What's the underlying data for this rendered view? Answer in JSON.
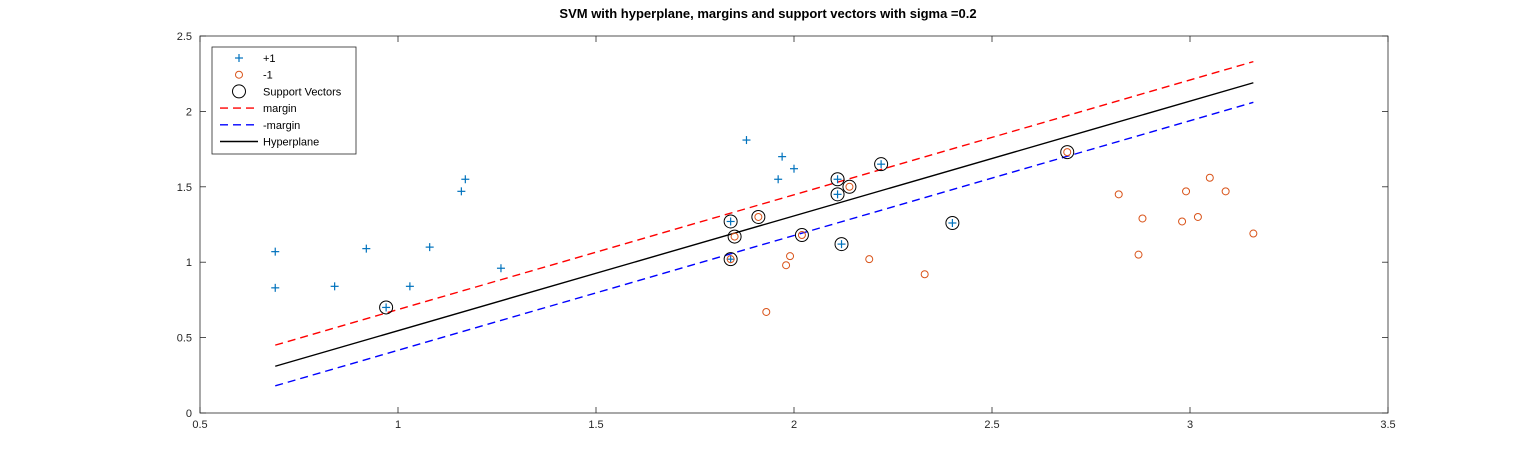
{
  "chart_data": {
    "type": "scatter",
    "title": "SVM with hyperplane, margins and support vectors with sigma =0.2",
    "xlabel": "",
    "ylabel": "",
    "xlim": [
      0.5,
      3.5
    ],
    "ylim": [
      0,
      2.5
    ],
    "xticks": [
      "0.5",
      "1",
      "1.5",
      "2",
      "2.5",
      "3",
      "3.5"
    ],
    "yticks": [
      "0",
      "0.5",
      "1",
      "1.5",
      "2",
      "2.5"
    ],
    "grid": false,
    "legend_position": "top-left",
    "colors": {
      "positive": "#0072BD",
      "negative": "#D95319",
      "support": "#000000",
      "margin": "#FF0000",
      "neg_margin": "#0000FF",
      "hyperplane": "#000000"
    },
    "series": [
      {
        "name": "+1",
        "marker": "plus",
        "points": [
          [
            0.69,
            1.07
          ],
          [
            0.69,
            0.83
          ],
          [
            0.84,
            0.84
          ],
          [
            0.92,
            1.09
          ],
          [
            0.97,
            0.7
          ],
          [
            1.03,
            0.84
          ],
          [
            1.08,
            1.1
          ],
          [
            1.16,
            1.47
          ],
          [
            1.17,
            1.55
          ],
          [
            1.26,
            0.96
          ],
          [
            1.84,
            1.27
          ],
          [
            1.84,
            1.02
          ],
          [
            1.88,
            1.81
          ],
          [
            1.96,
            1.55
          ],
          [
            1.97,
            1.7
          ],
          [
            2.0,
            1.62
          ],
          [
            2.11,
            1.55
          ],
          [
            2.11,
            1.45
          ],
          [
            2.12,
            1.12
          ],
          [
            2.22,
            1.65
          ],
          [
            2.4,
            1.26
          ]
        ]
      },
      {
        "name": "-1",
        "marker": "circle",
        "points": [
          [
            1.84,
            1.02
          ],
          [
            1.85,
            1.17
          ],
          [
            1.91,
            1.3
          ],
          [
            1.93,
            0.67
          ],
          [
            1.98,
            0.98
          ],
          [
            1.99,
            1.04
          ],
          [
            2.02,
            1.18
          ],
          [
            2.14,
            1.5
          ],
          [
            2.19,
            1.02
          ],
          [
            2.33,
            0.92
          ],
          [
            2.69,
            1.73
          ],
          [
            2.82,
            1.45
          ],
          [
            2.87,
            1.05
          ],
          [
            2.88,
            1.29
          ],
          [
            2.98,
            1.27
          ],
          [
            2.99,
            1.47
          ],
          [
            3.02,
            1.3
          ],
          [
            3.05,
            1.56
          ],
          [
            3.09,
            1.47
          ],
          [
            3.16,
            1.19
          ]
        ]
      },
      {
        "name": "Support Vectors",
        "marker": "large-circle",
        "points": [
          [
            0.97,
            0.7
          ],
          [
            1.84,
            1.27
          ],
          [
            1.84,
            1.02
          ],
          [
            1.85,
            1.17
          ],
          [
            1.91,
            1.3
          ],
          [
            2.02,
            1.18
          ],
          [
            2.11,
            1.55
          ],
          [
            2.11,
            1.45
          ],
          [
            2.12,
            1.12
          ],
          [
            2.14,
            1.5
          ],
          [
            2.22,
            1.65
          ],
          [
            2.4,
            1.26
          ],
          [
            2.69,
            1.73
          ]
        ]
      },
      {
        "name": "margin",
        "line": "dashed",
        "points": [
          [
            0.69,
            0.45
          ],
          [
            3.16,
            2.33
          ]
        ]
      },
      {
        "name": "-margin",
        "line": "dashed",
        "points": [
          [
            0.69,
            0.18
          ],
          [
            3.16,
            2.06
          ]
        ]
      },
      {
        "name": "Hyperplane",
        "line": "solid",
        "points": [
          [
            0.69,
            0.31
          ],
          [
            3.16,
            2.19
          ]
        ]
      }
    ]
  }
}
